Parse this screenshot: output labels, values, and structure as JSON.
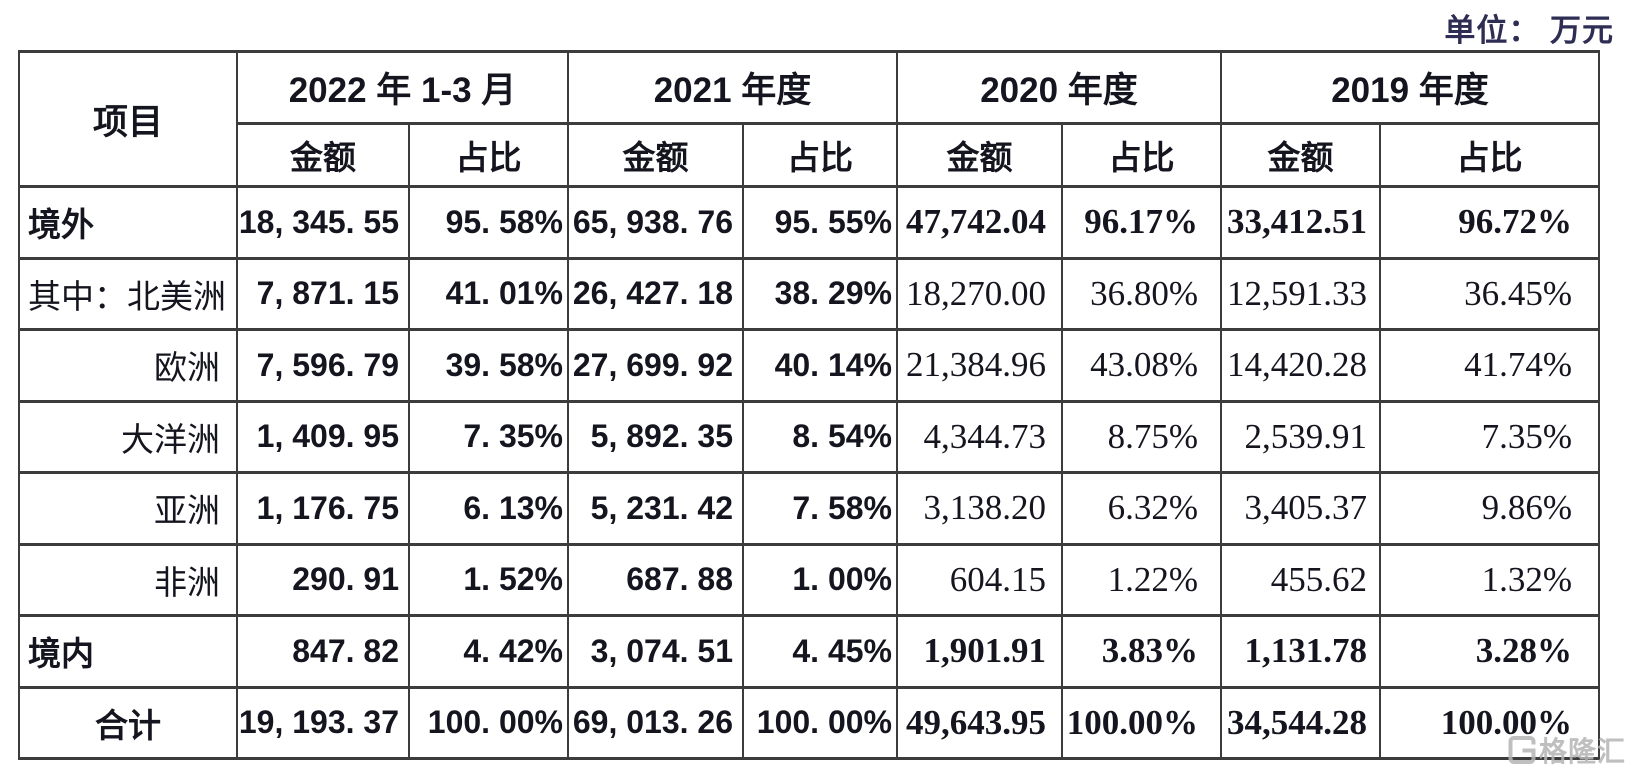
{
  "unit_label": "单位： 万元",
  "table": {
    "item_header": "项目",
    "amount_header": "金额",
    "ratio_header": "占比",
    "periods": [
      "2022 年 1-3 月",
      "2021 年度",
      "2020 年度",
      "2019 年度"
    ],
    "rows": [
      {
        "label": "境外",
        "bold": true,
        "label_style": "left",
        "values": [
          "18, 345. 55",
          "95. 58%",
          "65, 938. 76",
          "95. 55%",
          "47,742.04",
          "96.17%",
          "33,412.51",
          "96.72%"
        ]
      },
      {
        "label": "其中：北美洲",
        "bold": false,
        "label_style": "left",
        "values": [
          "7, 871. 15",
          "41. 01%",
          "26, 427. 18",
          "38. 29%",
          "18,270.00",
          "36.80%",
          "12,591.33",
          "36.45%"
        ]
      },
      {
        "label": "欧洲",
        "bold": false,
        "label_style": "sub",
        "values": [
          "7, 596. 79",
          "39. 58%",
          "27, 699. 92",
          "40. 14%",
          "21,384.96",
          "43.08%",
          "14,420.28",
          "41.74%"
        ]
      },
      {
        "label": "大洋洲",
        "bold": false,
        "label_style": "sub",
        "values": [
          "1, 409. 95",
          "7. 35%",
          "5, 892. 35",
          "8. 54%",
          "4,344.73",
          "8.75%",
          "2,539.91",
          "7.35%"
        ]
      },
      {
        "label": "亚洲",
        "bold": false,
        "label_style": "sub",
        "values": [
          "1, 176. 75",
          "6. 13%",
          "5, 231. 42",
          "7. 58%",
          "3,138.20",
          "6.32%",
          "3,405.37",
          "9.86%"
        ]
      },
      {
        "label": "非洲",
        "bold": false,
        "label_style": "sub",
        "values": [
          "290. 91",
          "1. 52%",
          "687. 88",
          "1. 00%",
          "604.15",
          "1.22%",
          "455.62",
          "1.32%"
        ]
      },
      {
        "label": "境内",
        "bold": true,
        "label_style": "left",
        "values": [
          "847. 82",
          "4. 42%",
          "3, 074. 51",
          "4. 45%",
          "1,901.91",
          "3.83%",
          "1,131.78",
          "3.28%"
        ]
      },
      {
        "label": "合计",
        "bold": true,
        "label_style": "center",
        "values": [
          "19, 193. 37",
          "100. 00%",
          "69, 013. 26",
          "100. 00%",
          "49,643.95",
          "100.00%",
          "34,544.28",
          "100.00%"
        ]
      }
    ]
  },
  "watermark": {
    "text": "格隆汇"
  },
  "colors": {
    "border": "#3c3c3c",
    "text": "#15151f",
    "unit_label": "#2e2e54",
    "watermark": "#b5b5b5",
    "background": "#ffffff"
  },
  "chart_data": {
    "type": "table",
    "title": "主营业务收入按地区分布",
    "unit": "万元",
    "columns": [
      "项目",
      "2022年1-3月 金额",
      "2022年1-3月 占比",
      "2021年度 金额",
      "2021年度 占比",
      "2020年度 金额",
      "2020年度 占比",
      "2019年度 金额",
      "2019年度 占比"
    ],
    "rows": [
      [
        "境外",
        18345.55,
        "95.58%",
        65938.76,
        "95.55%",
        47742.04,
        "96.17%",
        33412.51,
        "96.72%"
      ],
      [
        "其中：北美洲",
        7871.15,
        "41.01%",
        26427.18,
        "38.29%",
        18270.0,
        "36.80%",
        12591.33,
        "36.45%"
      ],
      [
        "欧洲",
        7596.79,
        "39.58%",
        27699.92,
        "40.14%",
        21384.96,
        "43.08%",
        14420.28,
        "41.74%"
      ],
      [
        "大洋洲",
        1409.95,
        "7.35%",
        5892.35,
        "8.54%",
        4344.73,
        "8.75%",
        2539.91,
        "7.35%"
      ],
      [
        "亚洲",
        1176.75,
        "6.13%",
        5231.42,
        "7.58%",
        3138.2,
        "6.32%",
        3405.37,
        "9.86%"
      ],
      [
        "非洲",
        290.91,
        "1.52%",
        687.88,
        "1.00%",
        604.15,
        "1.22%",
        455.62,
        "1.32%"
      ],
      [
        "境内",
        847.82,
        "4.42%",
        3074.51,
        "4.45%",
        1901.91,
        "3.83%",
        1131.78,
        "3.28%"
      ],
      [
        "合计",
        19193.37,
        "100.00%",
        69013.26,
        "100.00%",
        49643.95,
        "100.00%",
        34544.28,
        "100.00%"
      ]
    ]
  }
}
